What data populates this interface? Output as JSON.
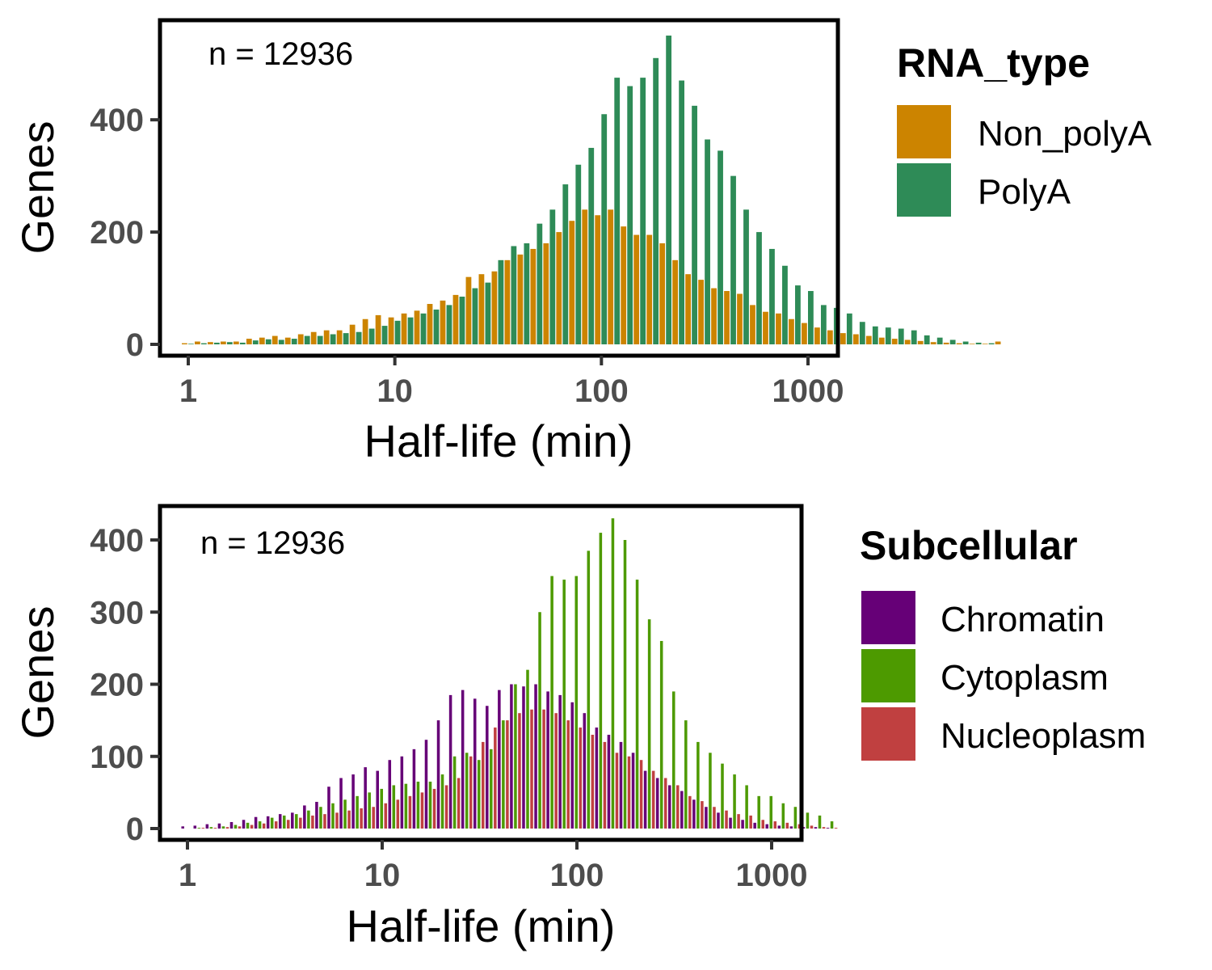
{
  "chart_data": [
    {
      "type": "bar",
      "x_scale": "log10",
      "bin_width_log10": 0.0625,
      "x_first_bin_center_log10": 0.0,
      "xlim": [
        0.7,
        1400
      ],
      "ylim": [
        0,
        575
      ],
      "xticks": [
        1,
        10,
        100,
        1000
      ],
      "xtick_labels": [
        "1",
        "10",
        "100",
        "1000"
      ],
      "yticks": [
        0,
        200,
        400
      ],
      "ytick_labels": [
        "0",
        "200",
        "400"
      ],
      "xlabel": "Half-life (min)",
      "ylabel": "Genes",
      "annotation": "n = 12936",
      "legend": {
        "title": "RNA_type",
        "position": "right"
      },
      "series": [
        {
          "name": "Non_polyA",
          "color": "#CC8400",
          "values": [
            2,
            5,
            4,
            5,
            5,
            10,
            12,
            15,
            12,
            18,
            22,
            25,
            25,
            35,
            45,
            52,
            48,
            55,
            60,
            72,
            78,
            88,
            120,
            125,
            130,
            150,
            160,
            170,
            180,
            200,
            220,
            240,
            230,
            240,
            210,
            195,
            195,
            180,
            150,
            125,
            115,
            100,
            95,
            90,
            70,
            58,
            55,
            45,
            38,
            30,
            25,
            20,
            18,
            15,
            12,
            10,
            8,
            6,
            4,
            3,
            2,
            1,
            1,
            5
          ]
        },
        {
          "name": "PolyA",
          "color": "#2E8B57",
          "values": [
            1,
            2,
            3,
            4,
            3,
            7,
            9,
            8,
            10,
            15,
            15,
            18,
            20,
            22,
            28,
            33,
            42,
            48,
            55,
            62,
            70,
            85,
            100,
            110,
            150,
            175,
            180,
            215,
            240,
            285,
            320,
            350,
            410,
            475,
            460,
            475,
            510,
            550,
            470,
            425,
            365,
            345,
            300,
            240,
            200,
            170,
            140,
            105,
            95,
            70,
            65,
            55,
            40,
            32,
            30,
            28,
            25,
            16,
            12,
            8,
            5,
            3,
            2,
            0
          ]
        }
      ]
    },
    {
      "type": "bar",
      "x_scale": "log10",
      "bin_width_log10": 0.0625,
      "x_first_bin_center_log10": 0.0,
      "xlim": [
        0.7,
        1400
      ],
      "ylim": [
        0,
        450
      ],
      "xticks": [
        1,
        10,
        100,
        1000
      ],
      "xtick_labels": [
        "1",
        "10",
        "100",
        "1000"
      ],
      "yticks": [
        0,
        100,
        200,
        300,
        400
      ],
      "ytick_labels": [
        "0",
        "100",
        "200",
        "300",
        "400"
      ],
      "xlabel": "Half-life (min)",
      "ylabel": "Genes",
      "annotation": "n = 12936",
      "legend": {
        "title": "Subcellular",
        "position": "right"
      },
      "series": [
        {
          "name": "Chromatin",
          "color": "#660077",
          "values": [
            3,
            4,
            6,
            7,
            9,
            12,
            16,
            17,
            20,
            22,
            32,
            37,
            58,
            70,
            75,
            85,
            80,
            95,
            100,
            110,
            123,
            150,
            185,
            192,
            180,
            170,
            192,
            200,
            197,
            200,
            190,
            185,
            175,
            160,
            140,
            130,
            120,
            105,
            80,
            70,
            60,
            52,
            40,
            30,
            22,
            15,
            12,
            8,
            6,
            4,
            3,
            2,
            2,
            1
          ]
        },
        {
          "name": "Cytoplasm",
          "color": "#4D9A00",
          "values": [
            0,
            1,
            2,
            3,
            5,
            8,
            10,
            15,
            18,
            20,
            25,
            30,
            35,
            40,
            45,
            50,
            55,
            60,
            62,
            65,
            65,
            75,
            100,
            105,
            95,
            110,
            150,
            200,
            220,
            300,
            350,
            345,
            350,
            385,
            410,
            430,
            400,
            345,
            290,
            260,
            190,
            150,
            120,
            105,
            90,
            75,
            60,
            45,
            45,
            35,
            30,
            22,
            18,
            10
          ]
        },
        {
          "name": "Nucleoplasm",
          "color": "#C04040",
          "values": [
            0,
            1,
            1,
            2,
            3,
            5,
            7,
            10,
            12,
            15,
            18,
            20,
            22,
            25,
            28,
            30,
            35,
            40,
            45,
            50,
            55,
            60,
            70,
            100,
            120,
            140,
            150,
            160,
            165,
            165,
            160,
            150,
            140,
            130,
            120,
            105,
            100,
            95,
            80,
            70,
            60,
            45,
            38,
            30,
            25,
            20,
            18,
            12,
            10,
            8,
            6,
            4,
            2,
            1
          ]
        }
      ]
    }
  ]
}
